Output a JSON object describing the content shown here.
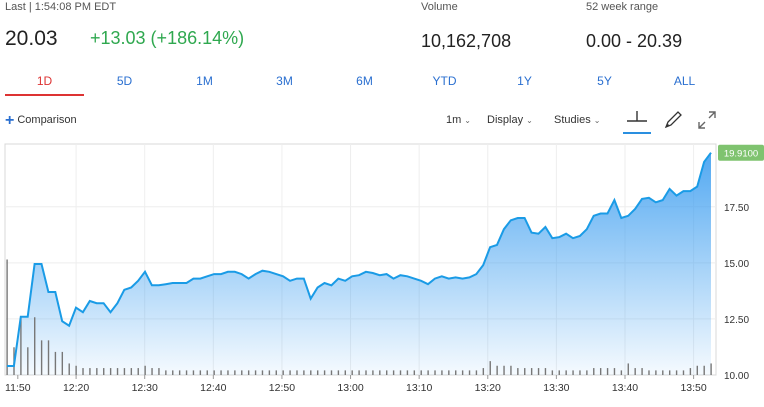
{
  "quote": {
    "last_label": "Last | 1:54:08 PM EDT",
    "price": "20.03",
    "change": "+13.03 (+186.14%)",
    "volume_label": "Volume",
    "volume": "10,162,708",
    "range_label": "52 week range",
    "range": "0.00 - 20.39"
  },
  "tabs": [
    "1D",
    "5D",
    "1M",
    "3M",
    "6M",
    "YTD",
    "1Y",
    "5Y",
    "ALL"
  ],
  "active_tab": "1D",
  "toolbar": {
    "comparison": "Comparison",
    "interval": "1m",
    "display": "Display",
    "studies": "Studies"
  },
  "icons": [
    "plus-icon",
    "crosshair-icon",
    "pencil-icon",
    "expand-icon",
    "chevron-down-icon"
  ],
  "colors": {
    "up": "#2fa84f",
    "active_tab": "#d33",
    "line": "#1a9be6",
    "price_tag": "#7fc36f"
  },
  "current_price_tag": "19.9100",
  "chart_data": {
    "type": "area",
    "x_ticks": [
      "11:50",
      "12:20",
      "12:30",
      "12:40",
      "12:50",
      "13:00",
      "13:10",
      "13:20",
      "13:30",
      "13:40",
      "13:50"
    ],
    "y_ticks": [
      "10.00",
      "12.50",
      "15.00",
      "17.50"
    ],
    "ylim": [
      10.0,
      20.3
    ],
    "series": [
      {
        "type": "line",
        "values": [
          10.4,
          10.4,
          12.6,
          12.6,
          14.95,
          14.95,
          13.7,
          13.7,
          12.4,
          12.2,
          13.0,
          12.8,
          13.3,
          13.2,
          13.2,
          12.8,
          13.2,
          13.8,
          13.9,
          14.2,
          14.6,
          14.0,
          14.0,
          14.05,
          14.1,
          14.1,
          14.1,
          14.3,
          14.3,
          14.4,
          14.5,
          14.5,
          14.6,
          14.6,
          14.5,
          14.3,
          14.5,
          14.65,
          14.6,
          14.5,
          14.4,
          14.2,
          14.3,
          14.3,
          13.4,
          13.9,
          14.1,
          14.0,
          14.3,
          14.2,
          14.4,
          14.45,
          14.6,
          14.55,
          14.45,
          14.5,
          14.3,
          14.45,
          14.4,
          14.3,
          14.2,
          14.05,
          14.3,
          14.4,
          14.3,
          14.35,
          14.3,
          14.35,
          14.5,
          14.9,
          15.7,
          15.8,
          16.5,
          16.9,
          17.0,
          17.0,
          16.35,
          16.3,
          16.6,
          16.1,
          16.15,
          16.3,
          16.1,
          16.2,
          16.5,
          17.1,
          17.2,
          17.2,
          17.8,
          17.0,
          17.1,
          17.4,
          17.85,
          17.9,
          17.7,
          17.8,
          18.3,
          18.0,
          18.2,
          18.2,
          18.4,
          19.5,
          19.91
        ]
      },
      {
        "type": "volume",
        "values": [
          0.5,
          0.12,
          0.25,
          0.12,
          0.25,
          0.15,
          0.15,
          0.1,
          0.1,
          0.05,
          0.04,
          0.03,
          0.03,
          0.03,
          0.03,
          0.03,
          0.03,
          0.03,
          0.03,
          0.03,
          0.04,
          0.03,
          0.03,
          0.02,
          0.02,
          0.02,
          0.02,
          0.02,
          0.02,
          0.02,
          0.02,
          0.02,
          0.02,
          0.02,
          0.02,
          0.02,
          0.02,
          0.02,
          0.02,
          0.02,
          0.02,
          0.02,
          0.02,
          0.02,
          0.02,
          0.02,
          0.02,
          0.02,
          0.02,
          0.02,
          0.02,
          0.02,
          0.02,
          0.02,
          0.02,
          0.02,
          0.02,
          0.02,
          0.02,
          0.02,
          0.02,
          0.02,
          0.02,
          0.02,
          0.02,
          0.02,
          0.02,
          0.02,
          0.02,
          0.03,
          0.06,
          0.04,
          0.04,
          0.04,
          0.03,
          0.03,
          0.03,
          0.03,
          0.03,
          0.02,
          0.02,
          0.02,
          0.02,
          0.02,
          0.02,
          0.03,
          0.03,
          0.03,
          0.03,
          0.02,
          0.05,
          0.03,
          0.03,
          0.02,
          0.02,
          0.02,
          0.02,
          0.02,
          0.02,
          0.03,
          0.04,
          0.04,
          0.05
        ]
      }
    ]
  }
}
